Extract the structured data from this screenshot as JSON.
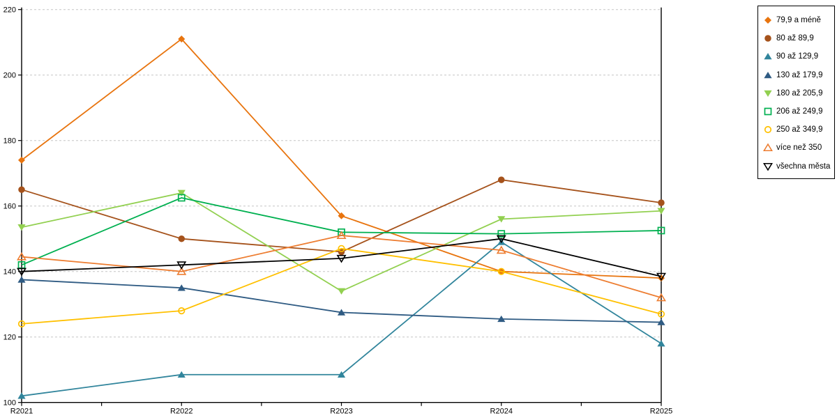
{
  "chart_data": {
    "type": "line",
    "title": "",
    "xlabel": "",
    "ylabel": "",
    "x_categories": [
      "R2021",
      "R2022",
      "R2023",
      "R2024",
      "R2025"
    ],
    "y_ticks": [
      100,
      120,
      140,
      160,
      180,
      200,
      220
    ],
    "ylim": [
      100,
      220
    ],
    "grid": "horizontal dashed",
    "gridline_color": "#C6C6C6",
    "axis_color": "#000000",
    "plot_border_right": true,
    "legend_position": "top-right",
    "series": [
      {
        "name": "79,9 a méně",
        "marker": "diamond-filled",
        "color": "#E8740E",
        "values": [
          174,
          211,
          157,
          140,
          138
        ]
      },
      {
        "name": "80 až 89,9",
        "marker": "circle-filled",
        "color": "#A5521B",
        "values": [
          165,
          150,
          146,
          168,
          161
        ]
      },
      {
        "name": "90 až 129,9",
        "marker": "triangle-up-filled",
        "color": "#31859C",
        "values": [
          102,
          108.5,
          108.5,
          149,
          118
        ]
      },
      {
        "name": "130 až 179,9",
        "marker": "triangle-up-filled",
        "color": "#2F5B83",
        "values": [
          137.5,
          135,
          127.5,
          125.5,
          124.5
        ]
      },
      {
        "name": "180 až 205,9",
        "marker": "triangle-down-filled",
        "color": "#92D050",
        "values": [
          153.5,
          164,
          134,
          156,
          158.5
        ]
      },
      {
        "name": "206 až 249,9",
        "marker": "square-open",
        "color": "#00B050",
        "values": [
          142,
          162.5,
          152,
          151.5,
          152.5
        ]
      },
      {
        "name": "250 až 349,9",
        "marker": "circle-open",
        "color": "#FFC000",
        "values": [
          124,
          128,
          147,
          140,
          127
        ]
      },
      {
        "name": "více než 350",
        "marker": "triangle-up-open",
        "color": "#ED7D31",
        "values": [
          144.5,
          140,
          151,
          146.5,
          132
        ]
      },
      {
        "name": "všechna města",
        "marker": "triangle-down-open",
        "color": "#000000",
        "values": [
          140,
          142,
          144,
          150,
          138.5
        ]
      }
    ]
  }
}
